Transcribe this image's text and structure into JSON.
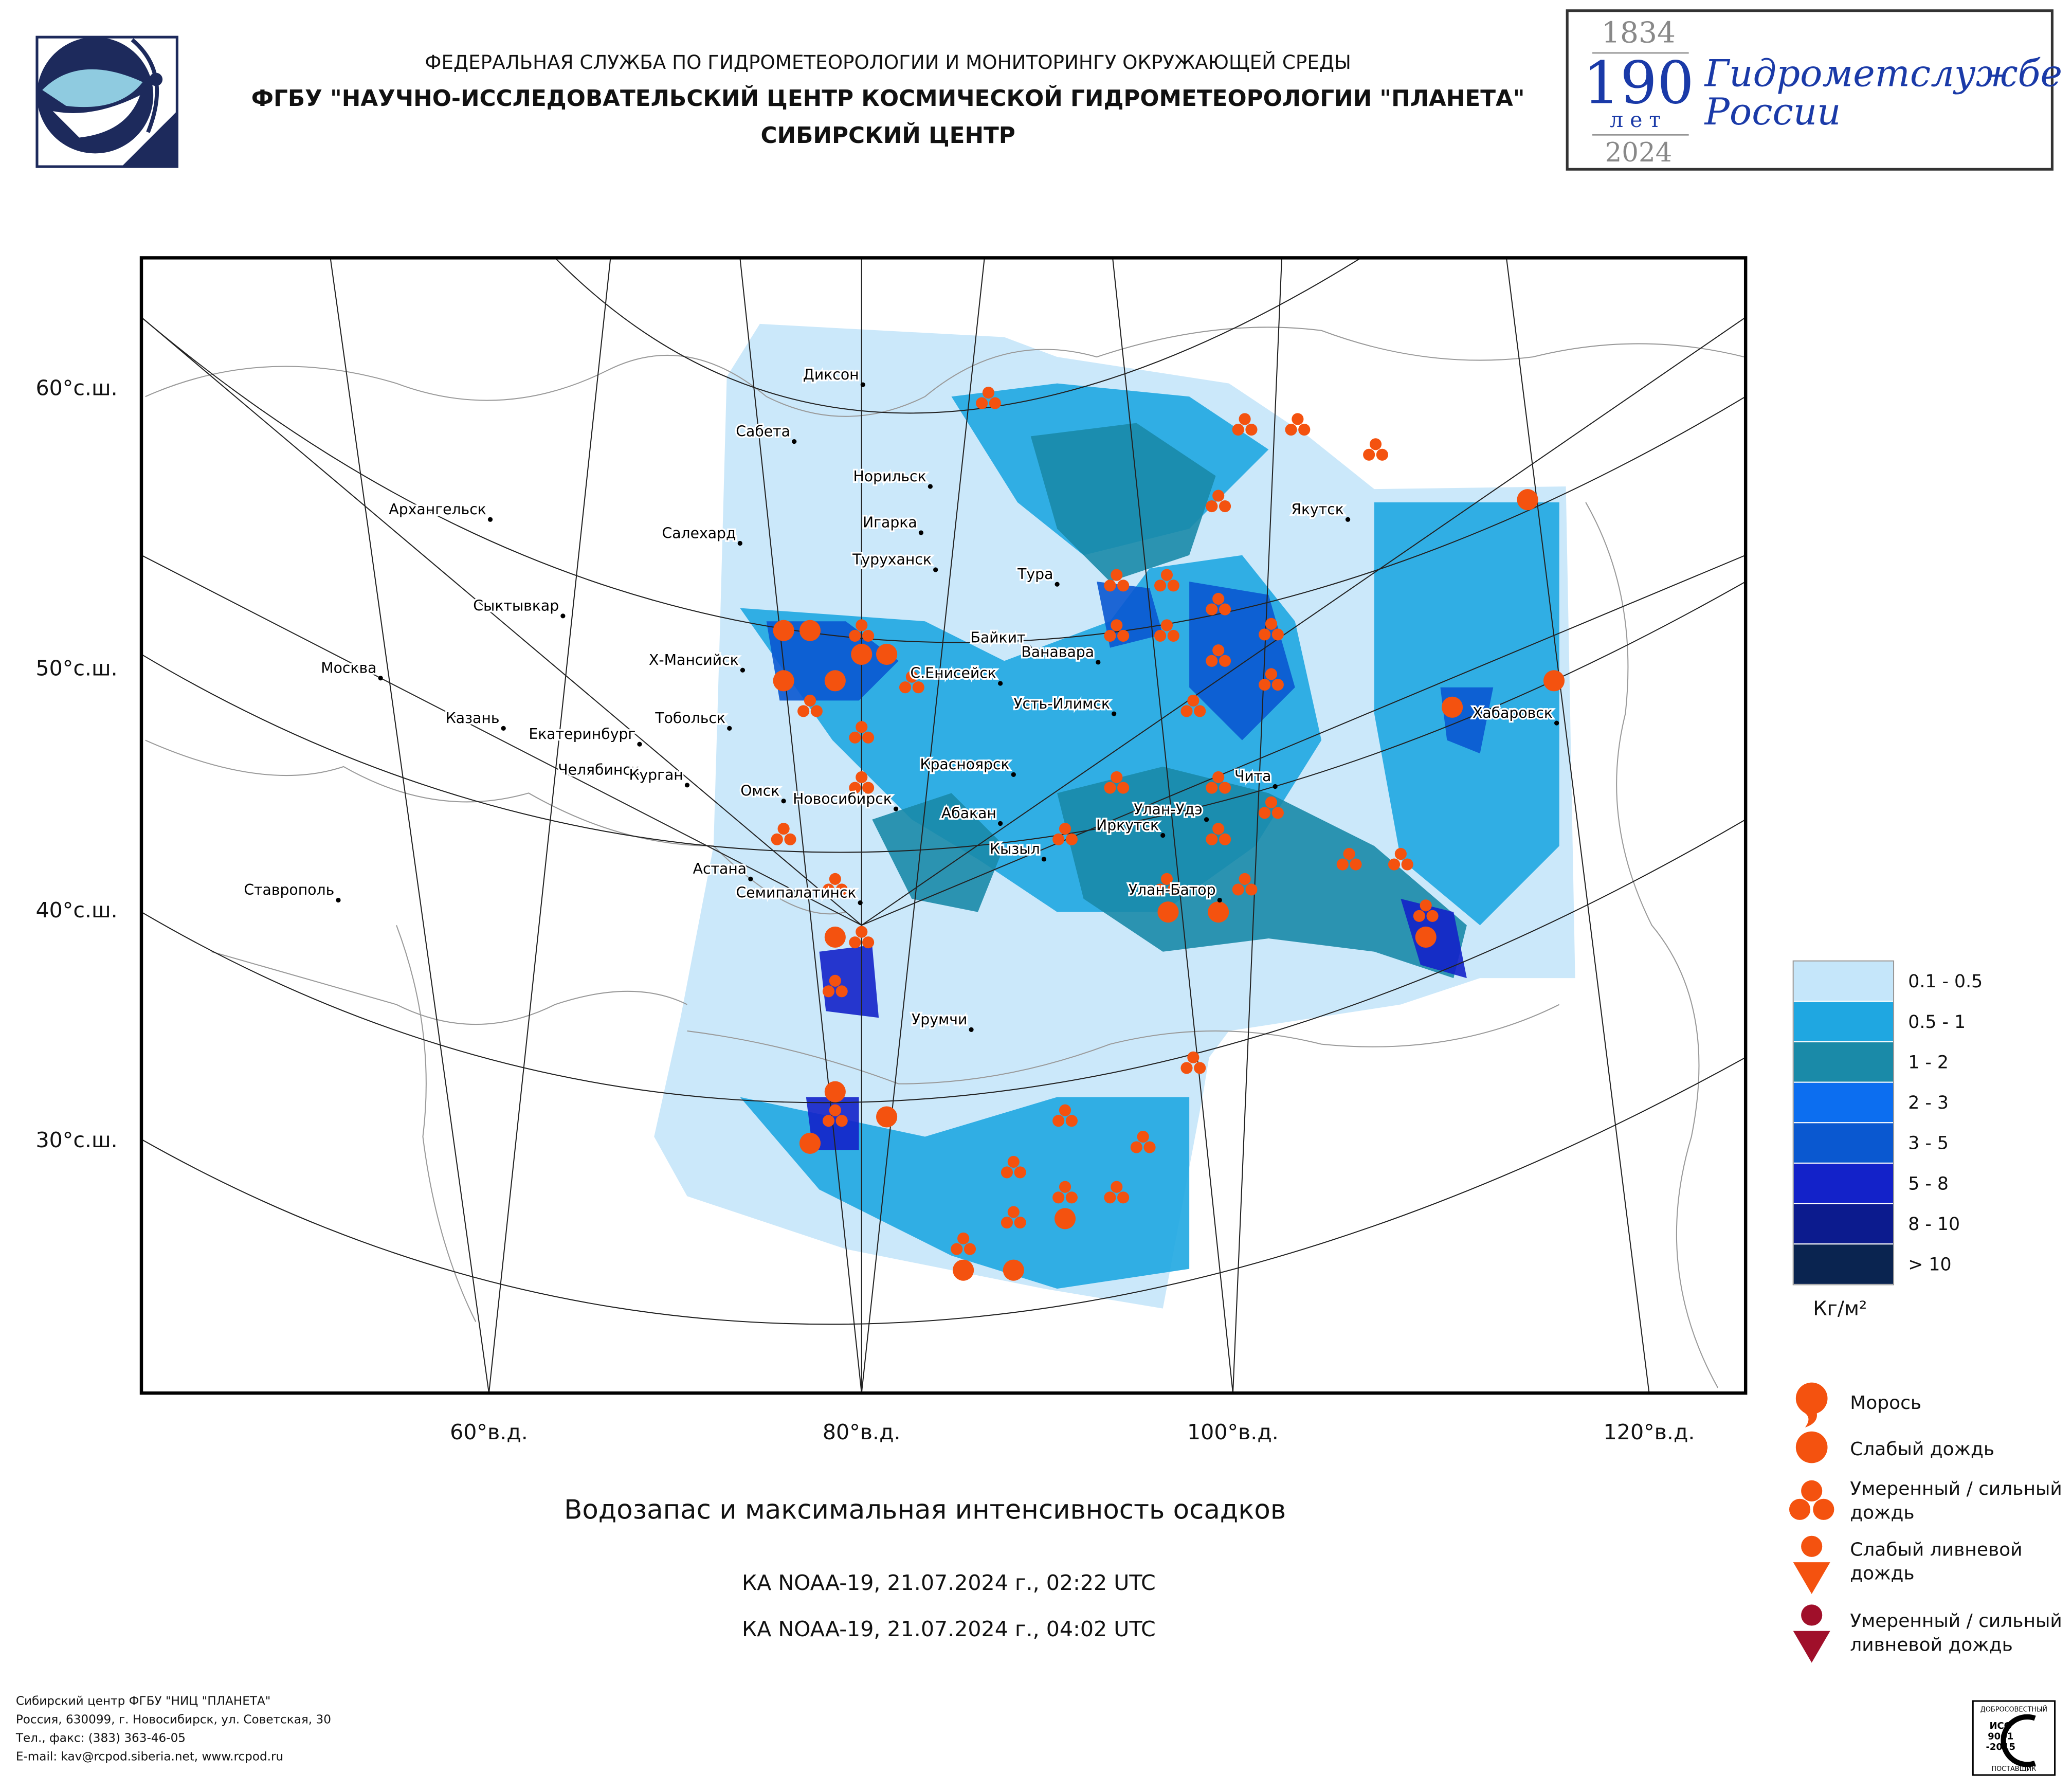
{
  "header": {
    "agency": "ФЕДЕРАЛЬНАЯ СЛУЖБА ПО ГИДРОМЕТЕОРОЛОГИИ И МОНИТОРИНГУ ОКРУЖАЮЩЕЙ СРЕДЫ",
    "institute": "ФГБУ \"НАУЧНО-ИССЛЕДОВАТЕЛЬСКИЙ ЦЕНТР КОСМИЧЕСКОЙ ГИДРОМЕТЕОРОЛОГИИ \"ПЛАНЕТА\"",
    "center": "СИБИРСКИЙ ЦЕНТР"
  },
  "anniversary": {
    "start_year": "1834",
    "number": "190",
    "unit": "лет",
    "line1": "Гидрометслужбе",
    "line2": "России",
    "end_year": "2024"
  },
  "map": {
    "lat_labels": [
      "60°с.ш.",
      "50°с.ш.",
      "40°с.ш.",
      "30°с.ш."
    ],
    "lon_labels": [
      "60°в.д.",
      "80°в.д.",
      "100°в.д.",
      "120°в.д."
    ],
    "cities": [
      "Диксон",
      "Сабета",
      "Норильск",
      "Архангельск",
      "Салехард",
      "Игарка",
      "Якутск",
      "Туруханск",
      "Тура",
      "Сыктывкар",
      "Байкит",
      "Ванавара",
      "Х-Мансийск",
      "Москва",
      "С.Енисейск",
      "Усть-Илимск",
      "Хабаровск",
      "Казань",
      "Тобольск",
      "Екатеринбург",
      "Челябинск",
      "Курган",
      "Красноярск",
      "Омск",
      "Новосибирск",
      "Чита",
      "Улан-Удэ",
      "Абакан",
      "Иркутск",
      "Кызыл",
      "Астана",
      "Ставрополь",
      "Улан-Батор",
      "Семипалатинск",
      "Урумчи"
    ]
  },
  "legend": {
    "water_ranges": [
      {
        "label": "0.1 - 0.5",
        "color": "#c5e6fa"
      },
      {
        "label": "0.5 - 1",
        "color": "#1fa7e1"
      },
      {
        "label": "1 - 2",
        "color": "#1a8aa8"
      },
      {
        "label": "2 - 3",
        "color": "#0c6ef0"
      },
      {
        "label": "3 - 5",
        "color": "#0a58d0"
      },
      {
        "label": "5 - 8",
        "color": "#1322c9"
      },
      {
        "label": "8 - 10",
        "color": "#0c1b8e"
      },
      {
        "label": "> 10",
        "color": "#0a2450"
      }
    ],
    "unit": "Кг/м²",
    "precip_types": [
      [
        "Морось"
      ],
      [
        "Слабый дождь"
      ],
      [
        "Умеренный / сильный",
        "дождь"
      ],
      [
        "Слабый ливневой",
        "дождь"
      ],
      [
        "Умеренный / сильный",
        "ливневой дождь"
      ]
    ]
  },
  "title": "Водозапас и максимальная интенсивность осадков",
  "passes": [
    "КА NOAA-19, 21.07.2024 г., 02:22 UTC",
    "КА NOAA-19, 21.07.2024 г., 04:02 UTC"
  ],
  "footer": [
    "Сибирский центр ФГБУ \"НИЦ \"ПЛАНЕТА\"",
    "Россия, 630099, г. Новосибирск, ул. Советская, 30",
    "Тел., факс: (383) 363-46-05",
    "E-mail: kav@rcpod.siberia.net, www.rcpod.ru"
  ],
  "certificate": {
    "top": "ДОБРОСОВЕСТНЫЙ",
    "iso": [
      "ИСО",
      "9001",
      "-2015"
    ],
    "bottom": "ПОСТАВЩИК"
  }
}
